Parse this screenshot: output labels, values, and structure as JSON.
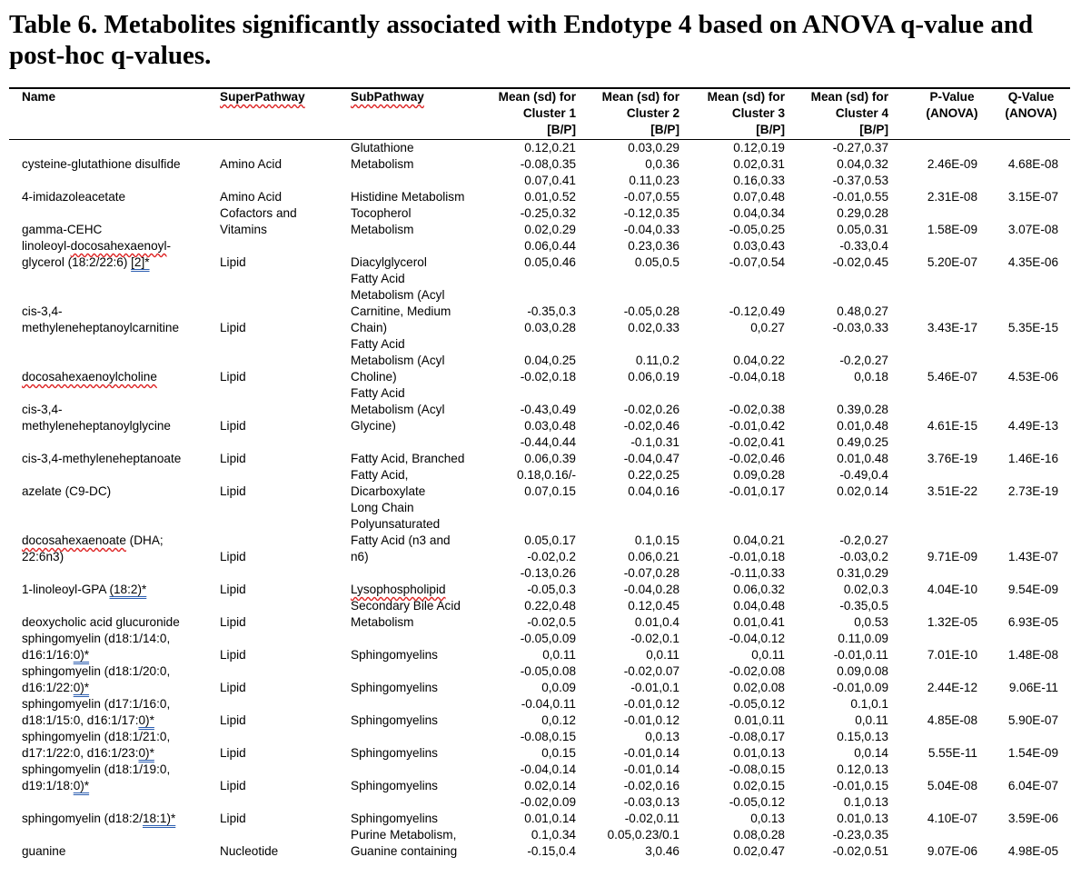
{
  "title": "Table 6. Metabolites significantly associated with Endotype 4 based on ANOVA q-value and post-hoc q-values.",
  "headers": {
    "name": "Name",
    "superpathway": "SuperPathway",
    "subpathway": "SubPathway",
    "c1": [
      "Mean (sd) for",
      "Cluster 1",
      "[B/P]"
    ],
    "c2": [
      "Mean (sd) for",
      "Cluster 2",
      "[B/P]"
    ],
    "c3": [
      "Mean (sd) for",
      "Cluster 3",
      "[B/P]"
    ],
    "c4": [
      "Mean (sd) for",
      "Cluster 4",
      "[B/P]"
    ],
    "p": [
      "P-Value",
      "(ANOVA)"
    ],
    "q": [
      "Q-Value",
      "(ANOVA)"
    ]
  },
  "lines": [
    {
      "sub": "Glutathione",
      "c1": "0.12,0.21",
      "c2": "0.03,0.29",
      "c3": "0.12,0.19",
      "c4": "-0.27,0.37"
    },
    {
      "name": "cysteine-glutathione disulfide",
      "sup": "Amino Acid",
      "sub": "Metabolism",
      "c1": "-0.08,0.35",
      "c2": "0,0.36",
      "c3": "0.02,0.31",
      "c4": "0.04,0.32",
      "p": "2.46E-09",
      "q": "4.68E-08"
    },
    {
      "c1": "0.07,0.41",
      "c2": "0.11,0.23",
      "c3": "0.16,0.33",
      "c4": "-0.37,0.53"
    },
    {
      "name": "4-imidazoleacetate",
      "sup": "Amino Acid",
      "sub": "Histidine Metabolism",
      "c1": "0.01,0.52",
      "c2": "-0.07,0.55",
      "c3": "0.07,0.48",
      "c4": "-0.01,0.55",
      "p": "2.31E-08",
      "q": "3.15E-07"
    },
    {
      "sup": "Cofactors and",
      "sub": "Tocopherol",
      "c1": "-0.25,0.32",
      "c2": "-0.12,0.35",
      "c3": "0.04,0.34",
      "c4": "0.29,0.28"
    },
    {
      "name": "gamma-CEHC",
      "sup": "Vitamins",
      "sub": "Metabolism",
      "c1": "0.02,0.29",
      "c2": "-0.04,0.33",
      "c3": "-0.05,0.25",
      "c4": "0.05,0.31",
      "p": "1.58E-09",
      "q": "3.07E-08"
    },
    {
      "name": "linoleoyl-docosahexaenoyl-",
      "c1": "0.06,0.44",
      "c2": "0.23,0.36",
      "c3": "0.03,0.43",
      "c4": "-0.33,0.4"
    },
    {
      "name": "glycerol (18:2/22:6) [2]*",
      "sup": "Lipid",
      "sub": "Diacylglycerol",
      "c1": "0.05,0.46",
      "c2": "0.05,0.5",
      "c3": "-0.07,0.54",
      "c4": "-0.02,0.45",
      "p": "5.20E-07",
      "q": "4.35E-06"
    },
    {
      "sub": "Fatty Acid"
    },
    {
      "sub": "Metabolism (Acyl"
    },
    {
      "name": "cis-3,4-",
      "sub": "Carnitine, Medium",
      "c1": "-0.35,0.3",
      "c2": "-0.05,0.28",
      "c3": "-0.12,0.49",
      "c4": "0.48,0.27"
    },
    {
      "name": "methyleneheptanoylcarnitine",
      "sup": "Lipid",
      "sub": "Chain)",
      "c1": "0.03,0.28",
      "c2": "0.02,0.33",
      "c3": "0,0.27",
      "c4": "-0.03,0.33",
      "p": "3.43E-17",
      "q": "5.35E-15"
    },
    {
      "sub": "Fatty Acid"
    },
    {
      "sub": "Metabolism (Acyl",
      "c1": "0.04,0.25",
      "c2": "0.11,0.2",
      "c3": "0.04,0.22",
      "c4": "-0.2,0.27"
    },
    {
      "name": "docosahexaenoylcholine",
      "sup": "Lipid",
      "sub": "Choline)",
      "c1": "-0.02,0.18",
      "c2": "0.06,0.19",
      "c3": "-0.04,0.18",
      "c4": "0,0.18",
      "p": "5.46E-07",
      "q": "4.53E-06"
    },
    {
      "sub": "Fatty Acid"
    },
    {
      "name": "cis-3,4-",
      "sub": "Metabolism (Acyl",
      "c1": "-0.43,0.49",
      "c2": "-0.02,0.26",
      "c3": "-0.02,0.38",
      "c4": "0.39,0.28"
    },
    {
      "name": "methyleneheptanoylglycine",
      "sup": "Lipid",
      "sub": "Glycine)",
      "c1": "0.03,0.48",
      "c2": "-0.02,0.46",
      "c3": "-0.01,0.42",
      "c4": "0.01,0.48",
      "p": "4.61E-15",
      "q": "4.49E-13"
    },
    {
      "c1": "-0.44,0.44",
      "c2": "-0.1,0.31",
      "c3": "-0.02,0.41",
      "c4": "0.49,0.25"
    },
    {
      "name": "cis-3,4-methyleneheptanoate",
      "sup": "Lipid",
      "sub": "Fatty Acid, Branched",
      "c1": "0.06,0.39",
      "c2": "-0.04,0.47",
      "c3": "-0.02,0.46",
      "c4": "0.01,0.48",
      "p": "3.76E-19",
      "q": "1.46E-16"
    },
    {
      "sub": "Fatty Acid,",
      "c1": "0.18,0.16/-",
      "c2": "0.22,0.25",
      "c3": "0.09,0.28",
      "c4": "-0.49,0.4"
    },
    {
      "name": "azelate (C9-DC)",
      "sup": "Lipid",
      "sub": "Dicarboxylate",
      "c1": "0.07,0.15",
      "c2": "0.04,0.16",
      "c3": "-0.01,0.17",
      "c4": "0.02,0.14",
      "p": "3.51E-22",
      "q": "2.73E-19"
    },
    {
      "sub": "Long Chain"
    },
    {
      "sub": "Polyunsaturated"
    },
    {
      "name": "docosahexaenoate (DHA;",
      "sub": "Fatty Acid (n3 and",
      "c1": "0.05,0.17",
      "c2": "0.1,0.15",
      "c3": "0.04,0.21",
      "c4": "-0.2,0.27"
    },
    {
      "name": "22:6n3)",
      "sup": "Lipid",
      "sub": "n6)",
      "c1": "-0.02,0.2",
      "c2": "0.06,0.21",
      "c3": "-0.01,0.18",
      "c4": "-0.03,0.2",
      "p": "9.71E-09",
      "q": "1.43E-07"
    },
    {
      "c1": "-0.13,0.26",
      "c2": "-0.07,0.28",
      "c3": "-0.11,0.33",
      "c4": "0.31,0.29"
    },
    {
      "name": "1-linoleoyl-GPA (18:2)*",
      "sup": "Lipid",
      "sub": "Lysophospholipid",
      "c1": "-0.05,0.3",
      "c2": "-0.04,0.28",
      "c3": "0.06,0.32",
      "c4": "0.02,0.3",
      "p": "4.04E-10",
      "q": "9.54E-09"
    },
    {
      "sub": "Secondary Bile Acid",
      "c1": "0.22,0.48",
      "c2": "0.12,0.45",
      "c3": "0.04,0.48",
      "c4": "-0.35,0.5"
    },
    {
      "name": "deoxycholic acid glucuronide",
      "sup": "Lipid",
      "sub": "Metabolism",
      "c1": "-0.02,0.5",
      "c2": "0.01,0.4",
      "c3": "0.01,0.41",
      "c4": "0,0.53",
      "p": "1.32E-05",
      "q": "6.93E-05"
    },
    {
      "name": "sphingomyelin (d18:1/14:0,",
      "c1": "-0.05,0.09",
      "c2": "-0.02,0.1",
      "c3": "-0.04,0.12",
      "c4": "0.11,0.09"
    },
    {
      "name": "d16:1/16:0)*",
      "sup": "Lipid",
      "sub": "Sphingomyelins",
      "c1": "0,0.11",
      "c2": "0,0.11",
      "c3": "0,0.11",
      "c4": "-0.01,0.11",
      "p": "7.01E-10",
      "q": "1.48E-08"
    },
    {
      "name": "sphingomyelin (d18:1/20:0,",
      "c1": "-0.05,0.08",
      "c2": "-0.02,0.07",
      "c3": "-0.02,0.08",
      "c4": "0.09,0.08"
    },
    {
      "name": "d16:1/22:0)*",
      "sup": "Lipid",
      "sub": "Sphingomyelins",
      "c1": "0,0.09",
      "c2": "-0.01,0.1",
      "c3": "0.02,0.08",
      "c4": "-0.01,0.09",
      "p": "2.44E-12",
      "q": "9.06E-11"
    },
    {
      "name": "sphingomyelin (d17:1/16:0,",
      "c1": "-0.04,0.11",
      "c2": "-0.01,0.12",
      "c3": "-0.05,0.12",
      "c4": "0.1,0.1"
    },
    {
      "name": "d18:1/15:0, d16:1/17:0)*",
      "sup": "Lipid",
      "sub": "Sphingomyelins",
      "c1": "0,0.12",
      "c2": "-0.01,0.12",
      "c3": "0.01,0.11",
      "c4": "0,0.11",
      "p": "4.85E-08",
      "q": "5.90E-07"
    },
    {
      "name": "sphingomyelin (d18:1/21:0,",
      "c1": "-0.08,0.15",
      "c2": "0,0.13",
      "c3": "-0.08,0.17",
      "c4": "0.15,0.13"
    },
    {
      "name": "d17:1/22:0, d16:1/23:0)*",
      "sup": "Lipid",
      "sub": "Sphingomyelins",
      "c1": "0,0.15",
      "c2": "-0.01,0.14",
      "c3": "0.01,0.13",
      "c4": "0,0.14",
      "p": "5.55E-11",
      "q": "1.54E-09"
    },
    {
      "name": "sphingomyelin (d18:1/19:0,",
      "c1": "-0.04,0.14",
      "c2": "-0.01,0.14",
      "c3": "-0.08,0.15",
      "c4": "0.12,0.13"
    },
    {
      "name": "d19:1/18:0)*",
      "sup": "Lipid",
      "sub": "Sphingomyelins",
      "c1": "0.02,0.14",
      "c2": "-0.02,0.16",
      "c3": "0.02,0.15",
      "c4": "-0.01,0.15",
      "p": "5.04E-08",
      "q": "6.04E-07"
    },
    {
      "c1": "-0.02,0.09",
      "c2": "-0.03,0.13",
      "c3": "-0.05,0.12",
      "c4": "0.1,0.13"
    },
    {
      "name": "sphingomyelin (d18:2/18:1)*",
      "sup": "Lipid",
      "sub": "Sphingomyelins",
      "c1": "0.01,0.14",
      "c2": "-0.02,0.11",
      "c3": "0,0.13",
      "c4": "0.01,0.13",
      "p": "4.10E-07",
      "q": "3.59E-06"
    },
    {
      "sub": "Purine Metabolism,",
      "c1": "0.1,0.34",
      "c2": "0.05,0.23/0.1",
      "c3": "0.08,0.28",
      "c4": "-0.23,0.35"
    },
    {
      "name": "guanine",
      "sup": "Nucleotide",
      "sub": "Guanine containing",
      "c1": "-0.15,0.4",
      "c2": "3,0.46",
      "c3": "0.02,0.47",
      "c4": "-0.02,0.51",
      "p": "9.07E-06",
      "q": "4.98E-05"
    }
  ]
}
